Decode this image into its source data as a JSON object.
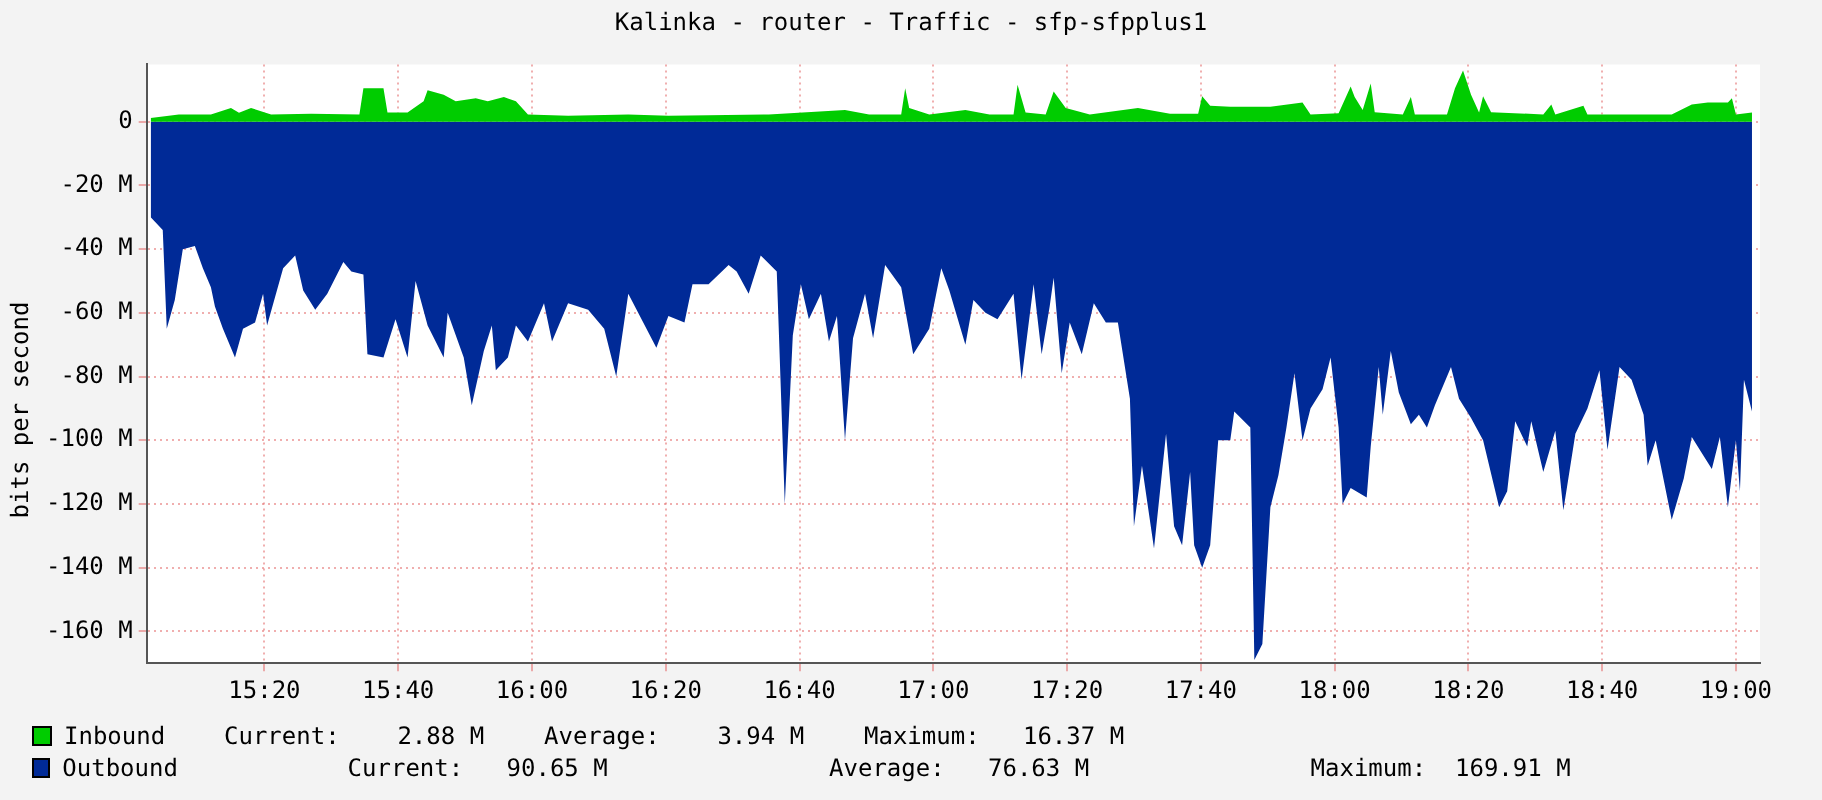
{
  "chart_data": {
    "type": "area",
    "title": "Kalinka - router - Traffic - sfp-sfpplus1",
    "ylabel": "bits per second",
    "xlim": [
      15.04,
      19.06
    ],
    "ylim": [
      -170,
      18
    ],
    "xticks": [
      {
        "value": 15.3333,
        "label": "15:20"
      },
      {
        "value": 15.6667,
        "label": "15:40"
      },
      {
        "value": 16,
        "label": "16:00"
      },
      {
        "value": 16.3333,
        "label": "16:20"
      },
      {
        "value": 16.6667,
        "label": "16:40"
      },
      {
        "value": 17,
        "label": "17:00"
      },
      {
        "value": 17.3333,
        "label": "17:20"
      },
      {
        "value": 17.6667,
        "label": "17:40"
      },
      {
        "value": 18,
        "label": "18:00"
      },
      {
        "value": 18.3333,
        "label": "18:20"
      },
      {
        "value": 18.6667,
        "label": "18:40"
      },
      {
        "value": 19,
        "label": "19:00"
      }
    ],
    "yticks": [
      0,
      {
        "value": -20,
        "label": "-20 M"
      },
      {
        "value": -40,
        "label": "-40 M"
      },
      {
        "value": -60,
        "label": "-60 M"
      },
      {
        "value": -80,
        "label": "-80 M"
      },
      {
        "value": -100,
        "label": "-100 M"
      },
      {
        "value": -120,
        "label": "-120 M"
      },
      {
        "value": -140,
        "label": "-140 M"
      },
      {
        "value": -160,
        "label": "-160 M"
      }
    ],
    "grid": true,
    "legend": "bottom",
    "annotations": [
      "Current:    2.88 M",
      "Average:    3.94 M",
      "Maximum:   16.37 M",
      "Current:   90.65 M",
      "Average:   76.63 M",
      "Maximum:  169.91 M"
    ],
    "series": [
      {
        "name": "Inbound",
        "color": "#00cc00",
        "x": [
          15.05,
          15.12,
          15.2,
          15.25,
          15.27,
          15.3,
          15.35,
          15.45,
          15.57,
          15.58,
          15.63,
          15.64,
          15.69,
          15.73,
          15.74,
          15.78,
          15.81,
          15.86,
          15.89,
          15.93,
          15.96,
          15.99,
          16.09,
          16.24,
          16.34,
          16.44,
          16.59,
          16.78,
          16.84,
          16.92,
          16.93,
          16.94,
          16.99,
          17.08,
          17.14,
          17.2,
          17.21,
          17.23,
          17.28,
          17.3,
          17.33,
          17.39,
          17.51,
          17.59,
          17.66,
          17.67,
          17.69,
          17.74,
          17.84,
          17.92,
          17.94,
          18.01,
          18.04,
          18.05,
          18.07,
          18.09,
          18.1,
          18.17,
          18.19,
          18.2,
          18.28,
          18.3,
          18.32,
          18.34,
          18.36,
          18.37,
          18.39,
          18.52,
          18.54,
          18.55,
          18.62,
          18.63,
          18.84,
          18.89,
          18.93,
          18.98,
          18.99,
          19.0,
          19.04
        ],
        "values": [
          1.2,
          2.3,
          2.3,
          4.3,
          2.8,
          4.3,
          2.3,
          2.5,
          2.3,
          10.5,
          10.5,
          2.9,
          2.9,
          6.4,
          9.9,
          8.5,
          6.4,
          7.4,
          6.4,
          7.8,
          6.4,
          2.3,
          1.9,
          2.3,
          1.9,
          2.0,
          2.3,
          3.7,
          2.3,
          2.3,
          10.5,
          4.3,
          2.3,
          3.7,
          2.3,
          2.3,
          11.6,
          2.9,
          2.3,
          9.5,
          4.3,
          2.3,
          4.3,
          2.5,
          2.5,
          8,
          5,
          4.7,
          4.7,
          6,
          2.3,
          2.7,
          11.1,
          7.8,
          3.7,
          12,
          3,
          2.3,
          7.8,
          2.3,
          2.3,
          10.5,
          16.1,
          8.5,
          2.9,
          8,
          3,
          2.3,
          5.4,
          2.3,
          5,
          2.3,
          2.3,
          5.4,
          6,
          6,
          7.4,
          2.3,
          2.9
        ]
      },
      {
        "name": "Outbound",
        "color": "#002a97",
        "x": [
          15.05,
          15.08,
          15.09,
          15.11,
          15.13,
          15.16,
          15.18,
          15.2,
          15.21,
          15.23,
          15.26,
          15.28,
          15.31,
          15.33,
          15.34,
          15.38,
          15.41,
          15.43,
          15.46,
          15.49,
          15.53,
          15.55,
          15.58,
          15.59,
          15.63,
          15.66,
          15.69,
          15.71,
          15.74,
          15.78,
          15.79,
          15.83,
          15.85,
          15.88,
          15.9,
          15.91,
          15.94,
          15.96,
          15.99,
          16.03,
          16.05,
          16.09,
          16.14,
          16.18,
          16.21,
          16.24,
          16.31,
          16.34,
          16.38,
          16.4,
          16.44,
          16.49,
          16.51,
          16.54,
          16.57,
          16.61,
          16.63,
          16.65,
          16.67,
          16.69,
          16.72,
          16.74,
          16.76,
          16.78,
          16.8,
          16.83,
          16.85,
          16.88,
          16.92,
          16.95,
          16.99,
          17.02,
          17.04,
          17.08,
          17.1,
          17.13,
          17.16,
          17.2,
          17.22,
          17.25,
          17.27,
          17.29,
          17.3,
          17.32,
          17.34,
          17.37,
          17.4,
          17.43,
          17.46,
          17.49,
          17.5,
          17.52,
          17.55,
          17.58,
          17.6,
          17.62,
          17.64,
          17.65,
          17.67,
          17.69,
          17.71,
          17.74,
          17.75,
          17.79,
          17.8,
          17.82,
          17.84,
          17.86,
          17.88,
          17.9,
          17.92,
          17.94,
          17.97,
          17.99,
          18.01,
          18.02,
          18.04,
          18.08,
          18.09,
          18.11,
          18.12,
          18.14,
          18.16,
          18.19,
          18.21,
          18.23,
          18.25,
          18.29,
          18.31,
          18.34,
          18.37,
          18.41,
          18.43,
          18.45,
          18.48,
          18.49,
          18.52,
          18.55,
          18.57,
          18.6,
          18.63,
          18.66,
          18.68,
          18.71,
          18.74,
          18.77,
          18.78,
          18.8,
          18.84,
          18.87,
          18.89,
          18.92,
          18.94,
          18.96,
          18.98,
          19.0,
          19.01,
          19.02,
          19.04
        ],
        "values": [
          -30,
          -34,
          -65,
          -56,
          -40,
          -39,
          -46,
          -52,
          -58,
          -65,
          -74,
          -65,
          -63,
          -54,
          -64,
          -46,
          -42,
          -53,
          -59,
          -54,
          -44,
          -47,
          -48,
          -73,
          -74,
          -62,
          -74,
          -50,
          -64,
          -74,
          -60,
          -74,
          -89,
          -72,
          -64,
          -78,
          -74,
          -64,
          -69,
          -57,
          -69,
          -57,
          -59,
          -65,
          -80,
          -54,
          -71,
          -61,
          -63,
          -51,
          -51,
          -45,
          -47,
          -54,
          -42,
          -47,
          -120,
          -67,
          -51,
          -62,
          -54,
          -69,
          -61,
          -100,
          -68,
          -54,
          -68,
          -45,
          -52,
          -73,
          -65,
          -46,
          -53,
          -70,
          -56,
          -60,
          -62,
          -54,
          -81,
          -51,
          -73,
          -58,
          -49,
          -79,
          -63,
          -73,
          -57,
          -63,
          -63,
          -87,
          -127,
          -108,
          -134,
          -98,
          -127,
          -133,
          -110,
          -133,
          -140,
          -133,
          -100,
          -100,
          -91,
          -96,
          -169,
          -164,
          -121,
          -111,
          -96,
          -79,
          -100,
          -90,
          -84,
          -74,
          -96,
          -120,
          -115,
          -118,
          -102,
          -77,
          -92,
          -72,
          -85,
          -95,
          -92,
          -96,
          -89,
          -77,
          -87,
          -93,
          -100,
          -121,
          -116,
          -94,
          -102,
          -94,
          -110,
          -97,
          -122,
          -98,
          -90,
          -78,
          -103,
          -77,
          -81,
          -92,
          -108,
          -100,
          -125,
          -112,
          -99,
          -105,
          -109,
          -99,
          -121,
          -100,
          -116,
          -81,
          -91
        ]
      }
    ]
  }
}
